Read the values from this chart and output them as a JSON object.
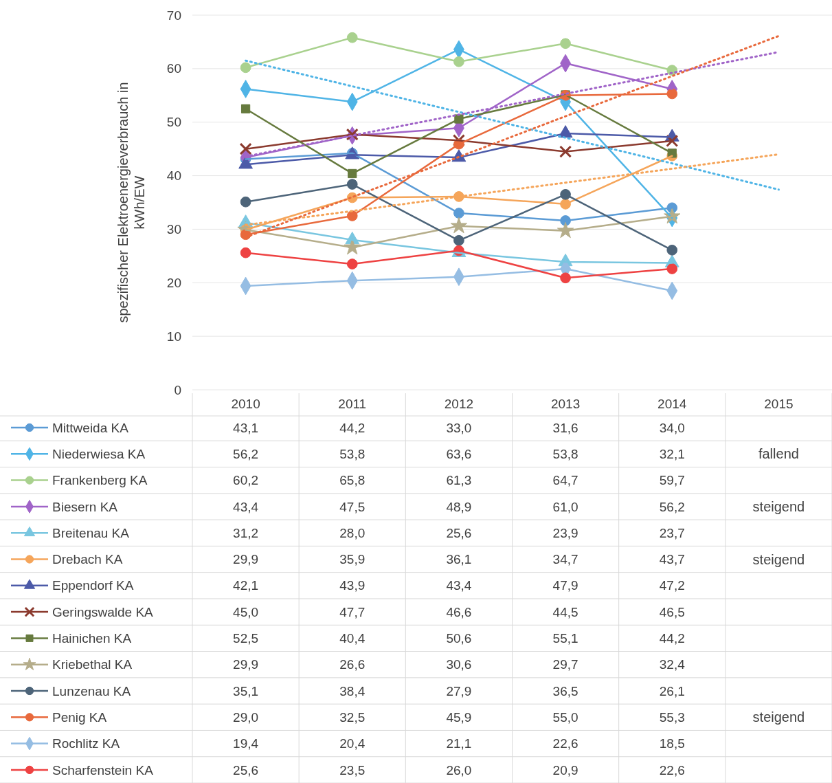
{
  "chart_data": {
    "type": "line",
    "ylabel": "spezifischer Elektroenergieverbrauch in kWh/EW",
    "categories": [
      "2010",
      "2011",
      "2012",
      "2013",
      "2014",
      "2015"
    ],
    "ylim": [
      0,
      70
    ],
    "yticks": [
      0,
      10,
      20,
      30,
      40,
      50,
      60,
      70
    ],
    "grid": "y",
    "legend": "bottom",
    "line_style": "solid",
    "series": [
      {
        "name": "Mittweida KA",
        "color": "#5b9bd5",
        "marker": "circle",
        "values": [
          43.1,
          44.2,
          33.0,
          31.6,
          34.0,
          null
        ],
        "value_labels": [
          "43,1",
          "44,2",
          "33,0",
          "31,6",
          "34,0",
          null
        ]
      },
      {
        "name": "Niederwiesa KA",
        "color": "#4fb4e6",
        "marker": "diamond",
        "values": [
          56.2,
          53.8,
          63.6,
          53.8,
          32.1,
          null
        ],
        "value_labels": [
          "56,2",
          "53,8",
          "63,6",
          "53,8",
          "32,1",
          null
        ]
      },
      {
        "name": "Frankenberg KA",
        "color": "#a9d18e",
        "marker": "circle",
        "values": [
          60.2,
          65.8,
          61.3,
          64.7,
          59.7,
          null
        ],
        "value_labels": [
          "60,2",
          "65,8",
          "61,3",
          "64,7",
          "59,7",
          null
        ]
      },
      {
        "name": "Biesern KA",
        "color": "#a064c8",
        "marker": "diamond",
        "values": [
          43.4,
          47.5,
          48.9,
          61.0,
          56.2,
          null
        ],
        "value_labels": [
          "43,4",
          "47,5",
          "48,9",
          "61,0",
          "56,2",
          null
        ]
      },
      {
        "name": "Breitenau KA",
        "color": "#79c6e0",
        "marker": "triangle",
        "values": [
          31.2,
          28.0,
          25.6,
          23.9,
          23.7,
          null
        ],
        "value_labels": [
          "31,2",
          "28,0",
          "25,6",
          "23,9",
          "23,7",
          null
        ]
      },
      {
        "name": "Drebach KA",
        "color": "#f5a55a",
        "marker": "circle",
        "values": [
          29.9,
          35.9,
          36.1,
          34.7,
          43.7,
          null
        ],
        "value_labels": [
          "29,9",
          "35,9",
          "36,1",
          "34,7",
          "43,7",
          null
        ]
      },
      {
        "name": "Eppendorf KA",
        "color": "#4c5aa8",
        "marker": "triangle",
        "values": [
          42.1,
          43.9,
          43.4,
          47.9,
          47.2,
          null
        ],
        "value_labels": [
          "42,1",
          "43,9",
          "43,4",
          "47,9",
          "47,2",
          null
        ]
      },
      {
        "name": "Geringswalde KA",
        "color": "#8b3a2e",
        "marker": "cross",
        "values": [
          45.0,
          47.7,
          46.6,
          44.5,
          46.5,
          null
        ],
        "value_labels": [
          "45,0",
          "47,7",
          "46,6",
          "44,5",
          "46,5",
          null
        ]
      },
      {
        "name": "Hainichen KA",
        "color": "#667a3e",
        "marker": "square",
        "values": [
          52.5,
          40.4,
          50.6,
          55.1,
          44.2,
          null
        ],
        "value_labels": [
          "52,5",
          "40,4",
          "50,6",
          "55,1",
          "44,2",
          null
        ]
      },
      {
        "name": "Kriebethal KA",
        "color": "#b5ad8a",
        "marker": "star",
        "values": [
          29.9,
          26.6,
          30.6,
          29.7,
          32.4,
          null
        ],
        "value_labels": [
          "29,9",
          "26,6",
          "30,6",
          "29,7",
          "32,4",
          null
        ]
      },
      {
        "name": "Lunzenau KA",
        "color": "#4d6479",
        "marker": "circle",
        "values": [
          35.1,
          38.4,
          27.9,
          36.5,
          26.1,
          null
        ],
        "value_labels": [
          "35,1",
          "38,4",
          "27,9",
          "36,5",
          "26,1",
          null
        ]
      },
      {
        "name": "Penig KA",
        "color": "#e8693c",
        "marker": "circle",
        "values": [
          29.0,
          32.5,
          45.9,
          55.0,
          55.3,
          null
        ],
        "value_labels": [
          "29,0",
          "32,5",
          "45,9",
          "55,0",
          "55,3",
          null
        ]
      },
      {
        "name": "Rochlitz KA",
        "color": "#95bde3",
        "marker": "diamond",
        "values": [
          19.4,
          20.4,
          21.1,
          22.6,
          18.5,
          null
        ],
        "value_labels": [
          "19,4",
          "20,4",
          "21,1",
          "22,6",
          "18,5",
          null
        ]
      },
      {
        "name": "Scharfenstein KA",
        "color": "#ee4242",
        "marker": "circle",
        "values": [
          25.6,
          23.5,
          26.0,
          20.9,
          22.6,
          null
        ],
        "value_labels": [
          "25,6",
          "23,5",
          "26,0",
          "20,9",
          "22,6",
          null
        ]
      },
      {
        "type": "line",
        "color": "#4fb4e6",
        "marker": "none",
        "line_style": "dotted",
        "values": [
          61.5,
          56.7,
          51.9,
          47.1,
          42.3,
          37.4
        ]
      },
      {
        "type": "line",
        "color": "#a064c8",
        "marker": "none",
        "line_style": "dotted",
        "values": [
          43.6,
          47.5,
          51.4,
          55.3,
          59.2,
          63.1
        ]
      },
      {
        "type": "line",
        "color": "#f5a55a",
        "marker": "none",
        "line_style": "dotted",
        "values": [
          30.8,
          33.4,
          36.1,
          38.7,
          41.3,
          44.0
        ]
      },
      {
        "type": "line",
        "color": "#e8693c",
        "marker": "none",
        "line_style": "dotted",
        "values": [
          28.5,
          36.0,
          43.5,
          51.1,
          58.6,
          66.1
        ]
      }
    ],
    "annotations": [
      "fallend",
      "steigend",
      "steigend",
      "steigend"
    ]
  }
}
